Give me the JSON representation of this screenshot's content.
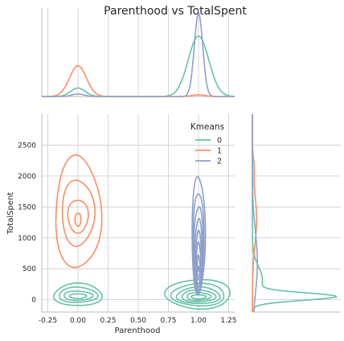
{
  "chart_data": {
    "type": "kde",
    "title": "Parenthood vs TotalSpent",
    "xlabel": "Parenthood",
    "ylabel": "TotalSpent",
    "xlim": [
      -0.3,
      1.3
    ],
    "ylim": [
      -200,
      3000
    ],
    "xticks": [
      "-0.25",
      "0.00",
      "0.25",
      "0.50",
      "0.75",
      "1.00",
      "1.25"
    ],
    "yticks": [
      "0",
      "500",
      "1000",
      "1500",
      "2000",
      "2500"
    ],
    "grid": true,
    "legend": {
      "title": "Kmeans",
      "position": "top-right",
      "entries": [
        "0",
        "1",
        "2"
      ]
    },
    "series": [
      {
        "name": "0",
        "color": "#66c2a5",
        "contours": [
          {
            "type": "blob",
            "cx": 0.0,
            "cy": 70,
            "rx": 0.2,
            "ry": 190
          },
          {
            "type": "blob",
            "cx": 0.0,
            "cy": 70,
            "rx": 0.16,
            "ry": 130
          },
          {
            "type": "blob",
            "cx": 0.0,
            "cy": 60,
            "rx": 0.12,
            "ry": 80
          },
          {
            "type": "blob",
            "cx": 0.0,
            "cy": 55,
            "rx": 0.07,
            "ry": 40
          },
          {
            "type": "blob",
            "cx": 1.0,
            "cy": 80,
            "rx": 0.27,
            "ry": 250
          },
          {
            "type": "blob",
            "cx": 1.0,
            "cy": 70,
            "rx": 0.22,
            "ry": 190
          },
          {
            "type": "blob",
            "cx": 1.0,
            "cy": 60,
            "rx": 0.18,
            "ry": 140
          },
          {
            "type": "blob",
            "cx": 1.0,
            "cy": 55,
            "rx": 0.14,
            "ry": 100
          },
          {
            "type": "blob",
            "cx": 1.0,
            "cy": 50,
            "rx": 0.1,
            "ry": 65
          },
          {
            "type": "blob",
            "cx": 1.0,
            "cy": 45,
            "rx": 0.06,
            "ry": 35
          }
        ],
        "marginal_x": [
          {
            "mu": 0.0,
            "sd": 0.06,
            "h": 0.1
          },
          {
            "mu": 1.0,
            "sd": 0.085,
            "h": 0.71
          }
        ],
        "marginal_y": [
          {
            "mu": 50,
            "sd": 60,
            "h": 0.95
          },
          {
            "mu": 320,
            "sd": 220,
            "h": 0.12
          }
        ]
      },
      {
        "name": "1",
        "color": "#fc8d62",
        "contours": [
          {
            "type": "blob",
            "cx": 0.0,
            "cy": 1360,
            "rx": 0.19,
            "ry": 950
          },
          {
            "type": "blob",
            "cx": 0.0,
            "cy": 1380,
            "rx": 0.135,
            "ry": 560
          },
          {
            "type": "blob",
            "cx": 0.0,
            "cy": 1340,
            "rx": 0.085,
            "ry": 280
          },
          {
            "type": "blob",
            "cx": 0.0,
            "cy": 1290,
            "rx": 0.025,
            "ry": 110
          }
        ],
        "marginal_x": [
          {
            "mu": 0.0,
            "sd": 0.07,
            "h": 0.36
          },
          {
            "mu": 1.0,
            "sd": 0.05,
            "h": 0.02
          }
        ],
        "marginal_y": [
          {
            "mu": 1300,
            "sd": 420,
            "h": 0.05
          },
          {
            "mu": 2150,
            "sd": 150,
            "h": 0.015
          }
        ]
      },
      {
        "name": "2",
        "color": "#8da0cb",
        "contours": [
          {
            "type": "blob",
            "cx": 1.0,
            "cy": 1000,
            "rx": 0.055,
            "ry": 1000
          },
          {
            "type": "blob",
            "cx": 1.0,
            "cy": 900,
            "rx": 0.045,
            "ry": 850
          },
          {
            "type": "blob",
            "cx": 1.0,
            "cy": 800,
            "rx": 0.038,
            "ry": 720
          },
          {
            "type": "blob",
            "cx": 1.0,
            "cy": 700,
            "rx": 0.032,
            "ry": 600
          },
          {
            "type": "blob",
            "cx": 1.0,
            "cy": 620,
            "rx": 0.026,
            "ry": 480
          },
          {
            "type": "blob",
            "cx": 1.0,
            "cy": 560,
            "rx": 0.02,
            "ry": 360
          },
          {
            "type": "blob",
            "cx": 1.0,
            "cy": 520,
            "rx": 0.012,
            "ry": 200
          },
          {
            "type": "blob",
            "cx": 1.0,
            "cy": 500,
            "rx": 0.004,
            "ry": 40
          }
        ],
        "marginal_x": [
          {
            "mu": 0.0,
            "sd": 0.05,
            "h": 0.03
          },
          {
            "mu": 1.0,
            "sd": 0.035,
            "h": 0.98
          }
        ],
        "marginal_y": [
          {
            "mu": 600,
            "sd": 500,
            "h": 0.06
          }
        ]
      }
    ]
  }
}
